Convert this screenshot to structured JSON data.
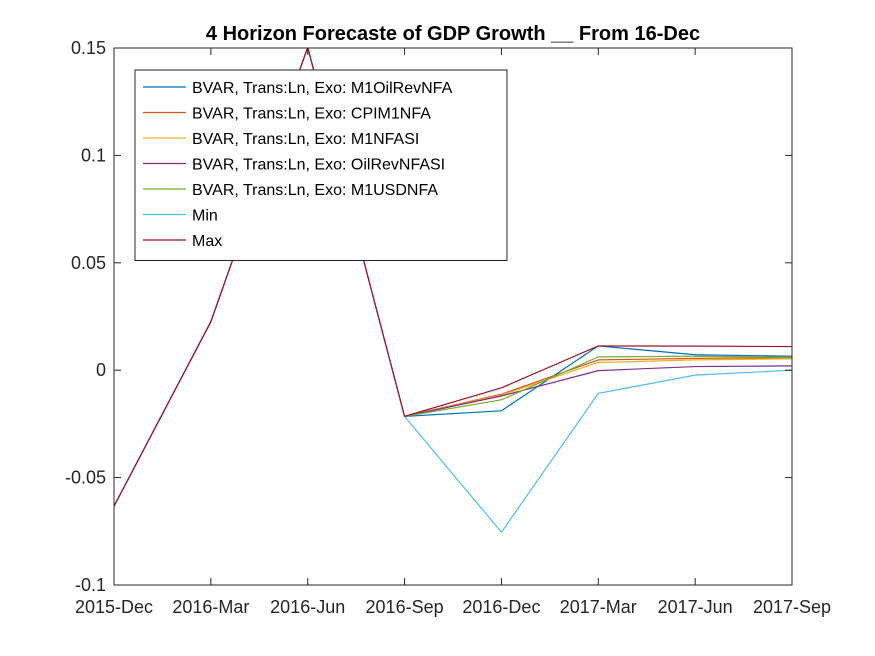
{
  "chart_data": {
    "type": "line",
    "title": "4 Horizon Forecaste of GDP Growth __ From 16-Dec",
    "xlabel": "",
    "ylabel": "",
    "categories": [
      "2015-Dec",
      "2016-Mar",
      "2016-Jun",
      "2016-Sep",
      "2016-Dec",
      "2017-Mar",
      "2017-Jun",
      "2017-Sep"
    ],
    "ylim": [
      -0.1,
      0.15
    ],
    "yticks": [
      -0.1,
      -0.05,
      0,
      0.05,
      0.1,
      0.15
    ],
    "ytick_labels": [
      "-0.1",
      "-0.05",
      "0",
      "0.05",
      "0.1",
      "0.15"
    ],
    "grid": false,
    "legend_position": "top-left",
    "series": [
      {
        "name": "BVAR, Trans:Ln, Exo: M1OilRevNFA",
        "color": "#0072BD",
        "values": [
          -0.0633,
          0.0226,
          0.1503,
          -0.0215,
          -0.0189,
          0.0113,
          0.0072,
          0.0065
        ]
      },
      {
        "name": "BVAR, Trans:Ln, Exo: CPIM1NFA",
        "color": "#D95319",
        "values": [
          -0.0633,
          0.0226,
          0.1503,
          -0.0215,
          -0.0112,
          0.0048,
          0.0055,
          0.0058
        ]
      },
      {
        "name": "BVAR, Trans:Ln, Exo: M1NFASI",
        "color": "#EDB120",
        "values": [
          -0.0633,
          0.0226,
          0.1503,
          -0.0215,
          -0.0116,
          0.0036,
          0.0048,
          0.0053
        ]
      },
      {
        "name": "BVAR, Trans:Ln, Exo: OilRevNFASI",
        "color": "#7E2F8E",
        "values": [
          -0.0633,
          0.0226,
          0.1503,
          -0.0215,
          -0.012,
          -0.0002,
          0.0017,
          0.002
        ]
      },
      {
        "name": "BVAR, Trans:Ln, Exo: M1USDNFA",
        "color": "#77AC30",
        "values": [
          -0.0633,
          0.0226,
          0.1503,
          -0.0215,
          -0.0138,
          0.0062,
          0.0065,
          0.006
        ]
      },
      {
        "name": "Min",
        "color": "#4DBEEE",
        "values": [
          -0.0633,
          0.0226,
          0.1503,
          -0.0215,
          -0.0754,
          -0.0108,
          -0.0023,
          0.0
        ]
      },
      {
        "name": "Max",
        "color": "#A2142F",
        "values": [
          -0.0633,
          0.0226,
          0.1503,
          -0.0215,
          -0.0082,
          0.0113,
          0.0112,
          0.011
        ]
      }
    ]
  }
}
